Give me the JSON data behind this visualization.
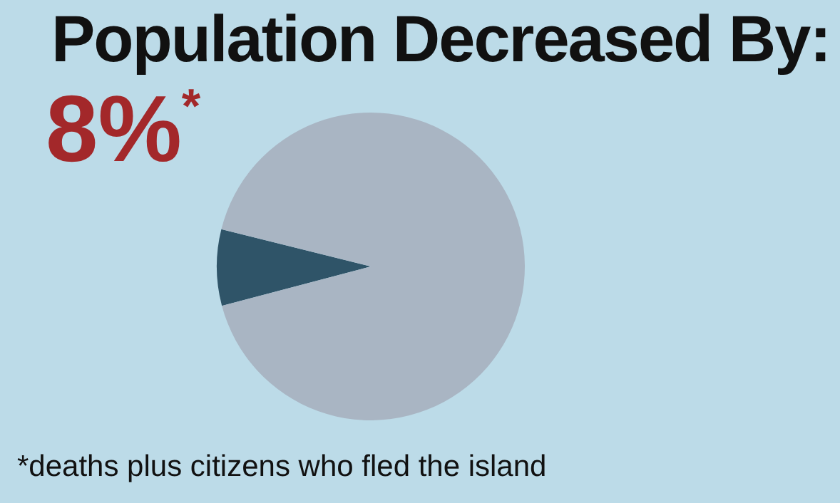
{
  "chart_data": {
    "type": "pie",
    "title": "Population Decreased By:",
    "categories": [
      null,
      null
    ],
    "values": [
      8,
      92
    ],
    "colors": [
      "#2f5468",
      "#a9b5c3"
    ],
    "annotations": [
      "8%$^{*}$",
      "*deaths plus citizens who fled the island"
    ]
  }
}
